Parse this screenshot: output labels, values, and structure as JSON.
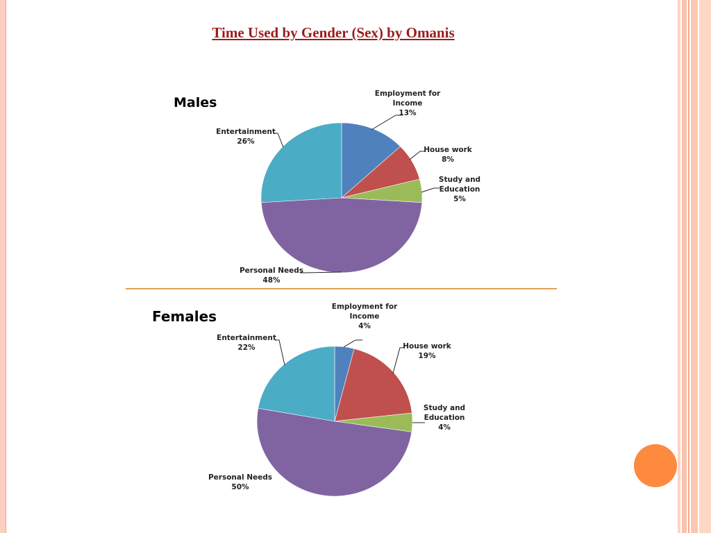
{
  "slide": {
    "title": "Time Used by Gender (Sex) by Omanis"
  },
  "colors": {
    "employment": "#4f81bd",
    "house_work": "#c0504d",
    "study": "#9bbb59",
    "personal": "#8064a2",
    "entertainment": "#4bacc6",
    "accent": "#fd8a3f"
  },
  "chart_data": [
    {
      "type": "pie",
      "title": "Males",
      "slices": [
        {
          "key": "employment",
          "name_lines": [
            "Employment for",
            "Income"
          ],
          "pct_label": "13%",
          "value": 13
        },
        {
          "key": "house_work",
          "name_lines": [
            "House work"
          ],
          "pct_label": "8%",
          "value": 8
        },
        {
          "key": "study",
          "name_lines": [
            "Study and",
            "Education"
          ],
          "pct_label": "5%",
          "value": 5
        },
        {
          "key": "personal",
          "name_lines": [
            "Personal Needs"
          ],
          "pct_label": "48%",
          "value": 48
        },
        {
          "key": "entertainment",
          "name_lines": [
            "Entertainment"
          ],
          "pct_label": "26%",
          "value": 26
        }
      ]
    },
    {
      "type": "pie",
      "title": "Females",
      "slices": [
        {
          "key": "employment",
          "name_lines": [
            "Employment for",
            "Income"
          ],
          "pct_label": "4%",
          "value": 4
        },
        {
          "key": "house_work",
          "name_lines": [
            "House work"
          ],
          "pct_label": "19%",
          "value": 19
        },
        {
          "key": "study",
          "name_lines": [
            "Study and",
            "Education"
          ],
          "pct_label": "4%",
          "value": 4
        },
        {
          "key": "personal",
          "name_lines": [
            "Personal Needs"
          ],
          "pct_label": "50%",
          "value": 50
        },
        {
          "key": "entertainment",
          "name_lines": [
            "Entertainment"
          ],
          "pct_label": "22%",
          "value": 22
        }
      ]
    }
  ]
}
